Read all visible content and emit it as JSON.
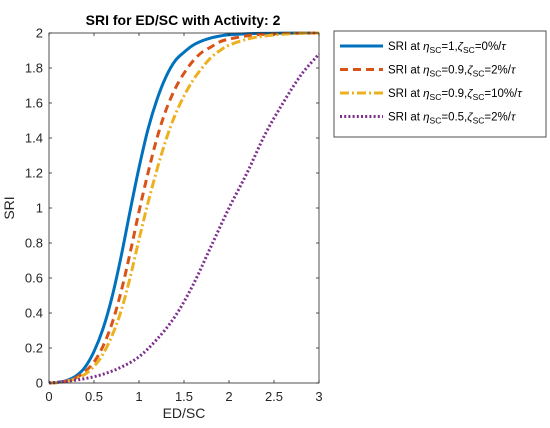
{
  "chart_data": {
    "type": "line",
    "title": "SRI for ED/SC with Activity: 2",
    "xlabel": "ED/SC",
    "ylabel": "SRI",
    "xlim": [
      0,
      3
    ],
    "ylim": [
      0,
      2
    ],
    "xticks": [
      "0",
      "0.5",
      "1",
      "1.5",
      "2",
      "2.5",
      "3"
    ],
    "yticks": [
      "0",
      "0.2",
      "0.4",
      "0.6",
      "0.8",
      "1",
      "1.2",
      "1.4",
      "1.6",
      "1.8",
      "2"
    ],
    "legend_position": "outside-right",
    "grid": false,
    "series": [
      {
        "name": "SRI at ηSC=1, ζSC=0%/τ",
        "legend": {
          "pre": "SRI at ",
          "eta_sub": "SC",
          "eta_val": "=1,",
          "zeta_sub": "SC",
          "zeta_val": "=0%/",
          "tau": "τ"
        },
        "color": "#0072BD",
        "style": "solid",
        "x": [
          0,
          0.1,
          0.2,
          0.3,
          0.4,
          0.5,
          0.6,
          0.7,
          0.8,
          0.9,
          1.0,
          1.1,
          1.2,
          1.3,
          1.4,
          1.5,
          1.6,
          1.7,
          1.8,
          1.9,
          2.0,
          2.2,
          2.4,
          2.6,
          2.8,
          3.0
        ],
        "y": [
          0.0,
          0.004,
          0.015,
          0.04,
          0.09,
          0.18,
          0.31,
          0.49,
          0.72,
          0.98,
          1.23,
          1.45,
          1.62,
          1.75,
          1.84,
          1.89,
          1.93,
          1.955,
          1.972,
          1.983,
          1.99,
          1.996,
          1.998,
          1.999,
          2.0,
          2.0
        ]
      },
      {
        "name": "SRI at ηSC=0.9, ζSC=2%/τ",
        "legend": {
          "pre": "SRI at ",
          "eta_sub": "SC",
          "eta_val": "=0.9,",
          "zeta_sub": "SC",
          "zeta_val": "=2%/",
          "tau": "τ"
        },
        "color": "#D95319",
        "style": "dashed",
        "x": [
          0,
          0.1,
          0.2,
          0.3,
          0.4,
          0.5,
          0.6,
          0.7,
          0.8,
          0.9,
          1.0,
          1.1,
          1.2,
          1.3,
          1.4,
          1.5,
          1.6,
          1.7,
          1.8,
          1.9,
          2.0,
          2.2,
          2.4,
          2.6,
          2.8,
          3.0
        ],
        "y": [
          0.0,
          0.003,
          0.012,
          0.03,
          0.065,
          0.12,
          0.21,
          0.34,
          0.52,
          0.74,
          0.98,
          1.2,
          1.4,
          1.56,
          1.68,
          1.77,
          1.84,
          1.89,
          1.92,
          1.95,
          1.965,
          1.984,
          1.993,
          1.997,
          1.999,
          2.0
        ]
      },
      {
        "name": "SRI at ηSC=0.9, ζSC=10%/τ",
        "legend": {
          "pre": "SRI at ",
          "eta_sub": "SC",
          "eta_val": "=0.9,",
          "zeta_sub": "SC",
          "zeta_val": "=10%/",
          "tau": "τ"
        },
        "color": "#EDB120",
        "style": "dashdot",
        "x": [
          0,
          0.1,
          0.2,
          0.3,
          0.4,
          0.5,
          0.6,
          0.7,
          0.8,
          0.9,
          1.0,
          1.1,
          1.2,
          1.3,
          1.4,
          1.5,
          1.6,
          1.7,
          1.8,
          1.9,
          2.0,
          2.2,
          2.4,
          2.6,
          2.8,
          3.0
        ],
        "y": [
          0.0,
          0.003,
          0.01,
          0.025,
          0.05,
          0.095,
          0.165,
          0.27,
          0.41,
          0.6,
          0.82,
          1.03,
          1.22,
          1.39,
          1.53,
          1.64,
          1.73,
          1.8,
          1.86,
          1.9,
          1.93,
          1.965,
          1.983,
          1.993,
          1.998,
          2.0
        ]
      },
      {
        "name": "SRI at ηSC=0.5, ζSC=2%/τ",
        "legend": {
          "pre": "SRI at ",
          "eta_sub": "SC",
          "eta_val": "=0.5,",
          "zeta_sub": "SC",
          "zeta_val": "=2%/",
          "tau": "τ"
        },
        "color": "#7E2F8E",
        "style": "dotted",
        "x": [
          0,
          0.2,
          0.4,
          0.6,
          0.8,
          1.0,
          1.2,
          1.4,
          1.6,
          1.8,
          2.0,
          2.2,
          2.4,
          2.6,
          2.8,
          3.0
        ],
        "y": [
          0.0,
          0.01,
          0.025,
          0.05,
          0.09,
          0.15,
          0.25,
          0.38,
          0.56,
          0.78,
          1.0,
          1.2,
          1.42,
          1.6,
          1.76,
          1.88
        ]
      }
    ]
  }
}
